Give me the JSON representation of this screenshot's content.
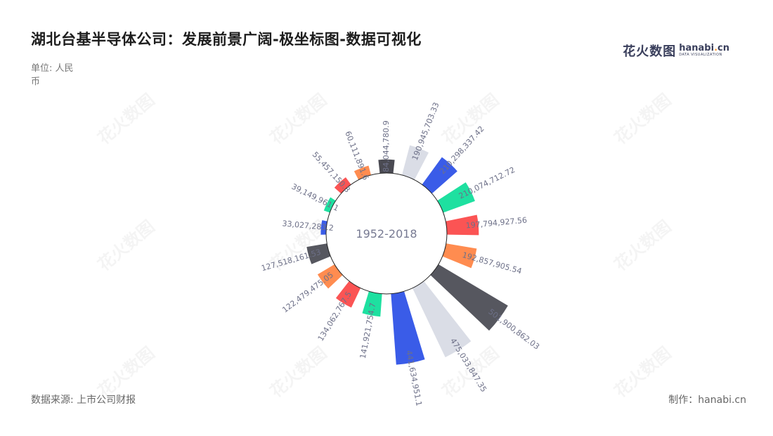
{
  "header": {
    "title": "湖北台基半导体公司：发展前景广阔-极坐标图-数据可视化",
    "unit": "单位: 人民币"
  },
  "footer": {
    "source": "数据来源: 上市公司财报",
    "maker": "制作：hanabi.cn"
  },
  "logo": {
    "cn": "花火数图",
    "en_main": "hanabi",
    "en_dot": ".",
    "en_tld": "cn",
    "en_sub": "DATA VISUALIZATION"
  },
  "watermark_text": "花火数图",
  "chart_data": {
    "type": "bar",
    "polar": true,
    "center_label": "1952-2018",
    "bars": [
      {
        "value": 84044780.91,
        "label": "84,044,780.9",
        "color": "#4a4a52"
      },
      {
        "value": 190945703.33,
        "label": "190,945,703.33",
        "color": "#dadde6"
      },
      {
        "value": 210298337.42,
        "label": "210,298,337.42",
        "color": "#3a5ce8"
      },
      {
        "value": 210074712.72,
        "label": "210,074,712.72",
        "color": "#1ee0a0"
      },
      {
        "value": 197794927.56,
        "label": "197,794,927.56",
        "color": "#fb5454"
      },
      {
        "value": 192857905.54,
        "label": "192,857,905.54",
        "color": "#ff8c50"
      },
      {
        "value": 501900862.03,
        "label": "501,900,862.03",
        "color": "#56575f"
      },
      {
        "value": 475033847.35,
        "label": "475,033,847.35",
        "color": "#dadde6"
      },
      {
        "value": 441634951.1,
        "label": "441,634,951.1",
        "color": "#3a5ce8"
      },
      {
        "value": 141921754.7,
        "label": "141,921,754.7",
        "color": "#1ee0a0"
      },
      {
        "value": 134062767.5,
        "label": "134,062,767.5",
        "color": "#fb5454"
      },
      {
        "value": 122479475.05,
        "label": "122,479,475.05",
        "color": "#ff8c50"
      },
      {
        "value": 127518161.53,
        "label": "127,518,161.53",
        "color": "#56575f"
      },
      {
        "value": 33027283.2,
        "label": "33,027,283.2",
        "color": "#3a5ce8"
      },
      {
        "value": 39149961.1,
        "label": "39,149,961.1",
        "color": "#1ee0a0"
      },
      {
        "value": 55457150.3,
        "label": "55,457,150.3",
        "color": "#fb5454"
      },
      {
        "value": 60111891.6,
        "label": "60,111,891.6",
        "color": "#ff8c50"
      }
    ]
  }
}
